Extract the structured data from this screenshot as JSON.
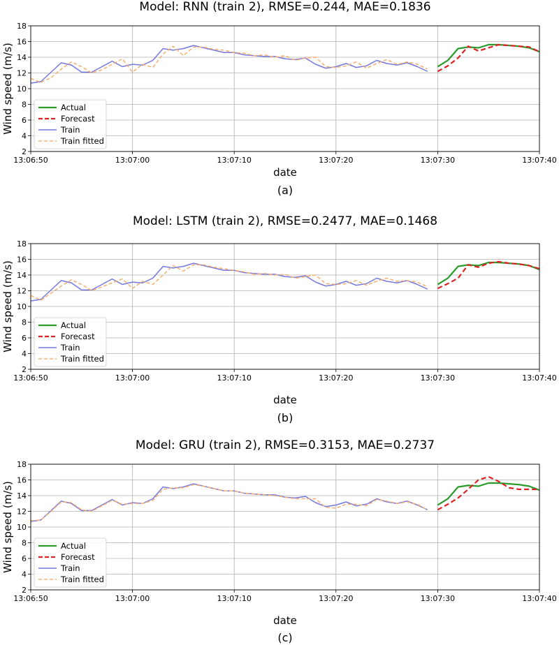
{
  "chart_data": [
    {
      "type": "line",
      "title": "Model: RNN (train 2), RMSE=0.244, MAE=0.1836",
      "xlabel": "date",
      "ylabel": "Wind speed (m/s)",
      "panel_label": "(a)",
      "xlim": [
        "13:06:50",
        "13:07:40"
      ],
      "ylim": [
        2,
        18
      ],
      "yticks": [
        2,
        4,
        6,
        8,
        10,
        12,
        14,
        16,
        18
      ],
      "xticks": [
        "13:06:50",
        "13:07:00",
        "13:07:10",
        "13:07:20",
        "13:07:30",
        "13:07:40"
      ],
      "grid": true,
      "legend": "lower left",
      "x_units": "seconds after 13:06:50",
      "series": [
        {
          "name": "Actual",
          "color": "#2a9a2a",
          "style": "solid",
          "x": [
            40,
            41,
            42,
            43,
            44,
            45,
            46,
            47,
            48,
            49,
            50
          ],
          "y": [
            12.8,
            13.6,
            15.1,
            15.3,
            15.2,
            15.6,
            15.6,
            15.5,
            15.4,
            15.2,
            14.7
          ]
        },
        {
          "name": "Forecast",
          "color": "#dd2222",
          "style": "dashed",
          "x": [
            40,
            41,
            42,
            43,
            44,
            45,
            46,
            47,
            48,
            49,
            50
          ],
          "y": [
            12.2,
            12.9,
            13.9,
            15.4,
            14.8,
            15.2,
            15.6,
            15.5,
            15.4,
            15.3,
            14.7
          ]
        },
        {
          "name": "Train",
          "color": "#7777dd",
          "style": "solid",
          "x": [
            0,
            1,
            2,
            3,
            4,
            5,
            6,
            7,
            8,
            9,
            10,
            11,
            12,
            13,
            14,
            15,
            16,
            17,
            18,
            19,
            20,
            21,
            22,
            23,
            24,
            25,
            26,
            27,
            28,
            29,
            30,
            31,
            32,
            33,
            34,
            35,
            36,
            37,
            38,
            39
          ],
          "y": [
            10.7,
            10.9,
            12.1,
            13.3,
            13.0,
            12.1,
            12.1,
            12.8,
            13.5,
            12.8,
            13.1,
            13.0,
            13.6,
            15.1,
            14.9,
            15.1,
            15.5,
            15.2,
            14.9,
            14.6,
            14.6,
            14.3,
            14.2,
            14.1,
            14.1,
            13.8,
            13.7,
            13.9,
            13.1,
            12.6,
            12.8,
            13.2,
            12.7,
            12.9,
            13.6,
            13.2,
            13.0,
            13.3,
            12.8,
            12.2
          ]
        },
        {
          "name": "Train fitted",
          "color": "#f5b070",
          "style": "dashed",
          "x": [
            0,
            1,
            2,
            3,
            4,
            5,
            6,
            7,
            8,
            9,
            10,
            11,
            12,
            13,
            14,
            15,
            16,
            17,
            18,
            19,
            20,
            21,
            22,
            23,
            24,
            25,
            26,
            27,
            28,
            29,
            30,
            31,
            32,
            33,
            34,
            35,
            36,
            37,
            38,
            39
          ],
          "y": [
            11.3,
            10.8,
            11.4,
            12.5,
            13.4,
            12.8,
            12.0,
            12.4,
            13.1,
            13.8,
            12.1,
            13.1,
            12.7,
            14.4,
            15.4,
            14.2,
            15.3,
            15.3,
            15.0,
            14.9,
            14.6,
            14.5,
            14.2,
            14.3,
            14.0,
            14.2,
            13.6,
            13.9,
            14.0,
            12.8,
            12.7,
            12.9,
            13.4,
            12.6,
            13.2,
            13.7,
            13.1,
            13.4,
            13.1,
            12.5
          ]
        }
      ]
    },
    {
      "type": "line",
      "title": "Model: LSTM (train 2), RMSE=0.2477, MAE=0.1468",
      "xlabel": "date",
      "ylabel": "Wind speed (m/s)",
      "panel_label": "(b)",
      "xlim": [
        "13:06:50",
        "13:07:40"
      ],
      "ylim": [
        2,
        18
      ],
      "yticks": [
        2,
        4,
        6,
        8,
        10,
        12,
        14,
        16,
        18
      ],
      "xticks": [
        "13:06:50",
        "13:07:00",
        "13:07:10",
        "13:07:20",
        "13:07:30",
        "13:07:40"
      ],
      "grid": true,
      "legend": "lower left",
      "x_units": "seconds after 13:06:50",
      "series": [
        {
          "name": "Actual",
          "color": "#2a9a2a",
          "style": "solid",
          "x": [
            40,
            41,
            42,
            43,
            44,
            45,
            46,
            47,
            48,
            49,
            50
          ],
          "y": [
            12.8,
            13.6,
            15.1,
            15.3,
            15.2,
            15.6,
            15.6,
            15.5,
            15.4,
            15.2,
            14.7
          ]
        },
        {
          "name": "Forecast",
          "color": "#dd2222",
          "style": "dashed",
          "x": [
            40,
            41,
            42,
            43,
            44,
            45,
            46,
            47,
            48,
            49,
            50
          ],
          "y": [
            12.3,
            12.9,
            13.6,
            15.3,
            15.0,
            15.5,
            15.7,
            15.5,
            15.4,
            15.2,
            14.8
          ]
        },
        {
          "name": "Train",
          "color": "#7777dd",
          "style": "solid",
          "x": [
            0,
            1,
            2,
            3,
            4,
            5,
            6,
            7,
            8,
            9,
            10,
            11,
            12,
            13,
            14,
            15,
            16,
            17,
            18,
            19,
            20,
            21,
            22,
            23,
            24,
            25,
            26,
            27,
            28,
            29,
            30,
            31,
            32,
            33,
            34,
            35,
            36,
            37,
            38,
            39
          ],
          "y": [
            10.7,
            10.9,
            12.1,
            13.3,
            13.0,
            12.1,
            12.1,
            12.8,
            13.5,
            12.8,
            13.1,
            13.0,
            13.6,
            15.1,
            14.9,
            15.1,
            15.5,
            15.2,
            14.9,
            14.6,
            14.6,
            14.3,
            14.2,
            14.1,
            14.1,
            13.8,
            13.7,
            13.9,
            13.1,
            12.6,
            12.8,
            13.2,
            12.7,
            12.9,
            13.6,
            13.2,
            13.0,
            13.3,
            12.8,
            12.2
          ]
        },
        {
          "name": "Train fitted",
          "color": "#f5b070",
          "style": "dashed",
          "x": [
            0,
            1,
            2,
            3,
            4,
            5,
            6,
            7,
            8,
            9,
            10,
            11,
            12,
            13,
            14,
            15,
            16,
            17,
            18,
            19,
            20,
            21,
            22,
            23,
            24,
            25,
            26,
            27,
            28,
            29,
            30,
            31,
            32,
            33,
            34,
            35,
            36,
            37,
            38,
            39
          ],
          "y": [
            11.4,
            10.8,
            11.7,
            12.6,
            13.4,
            12.8,
            12.0,
            12.5,
            13.0,
            13.5,
            12.3,
            13.2,
            12.8,
            14.0,
            15.2,
            14.5,
            15.3,
            15.3,
            15.0,
            14.8,
            14.6,
            14.4,
            14.1,
            14.2,
            14.0,
            14.1,
            13.6,
            13.8,
            14.0,
            12.9,
            12.8,
            12.9,
            13.3,
            12.7,
            13.2,
            13.6,
            13.2,
            13.3,
            13.1,
            12.5
          ]
        }
      ]
    },
    {
      "type": "line",
      "title": "Model: GRU (train 2), RMSE=0.3153, MAE=0.2737",
      "xlabel": "date",
      "ylabel": "Wind speed (m/s)",
      "panel_label": "(c)",
      "xlim": [
        "13:06:50",
        "13:07:40"
      ],
      "ylim": [
        2,
        18
      ],
      "yticks": [
        2,
        4,
        6,
        8,
        10,
        12,
        14,
        16,
        18
      ],
      "xticks": [
        "13:06:50",
        "13:07:00",
        "13:07:10",
        "13:07:20",
        "13:07:30",
        "13:07:40"
      ],
      "grid": true,
      "legend": "lower left",
      "x_units": "seconds after 13:06:50",
      "series": [
        {
          "name": "Actual",
          "color": "#2a9a2a",
          "style": "solid",
          "x": [
            40,
            41,
            42,
            43,
            44,
            45,
            46,
            47,
            48,
            49,
            50
          ],
          "y": [
            12.8,
            13.6,
            15.1,
            15.3,
            15.2,
            15.6,
            15.6,
            15.5,
            15.4,
            15.2,
            14.7
          ]
        },
        {
          "name": "Forecast",
          "color": "#dd2222",
          "style": "dashed",
          "x": [
            40,
            41,
            42,
            43,
            44,
            45,
            46,
            47,
            48,
            49,
            50
          ],
          "y": [
            12.2,
            12.9,
            13.7,
            14.8,
            16.0,
            16.4,
            15.8,
            15.0,
            14.8,
            14.8,
            14.8
          ]
        },
        {
          "name": "Train",
          "color": "#7777dd",
          "style": "solid",
          "x": [
            0,
            1,
            2,
            3,
            4,
            5,
            6,
            7,
            8,
            9,
            10,
            11,
            12,
            13,
            14,
            15,
            16,
            17,
            18,
            19,
            20,
            21,
            22,
            23,
            24,
            25,
            26,
            27,
            28,
            29,
            30,
            31,
            32,
            33,
            34,
            35,
            36,
            37,
            38,
            39
          ],
          "y": [
            10.7,
            10.9,
            12.1,
            13.3,
            13.0,
            12.1,
            12.1,
            12.8,
            13.5,
            12.8,
            13.1,
            13.0,
            13.6,
            15.1,
            14.9,
            15.1,
            15.5,
            15.2,
            14.9,
            14.6,
            14.6,
            14.3,
            14.2,
            14.1,
            14.1,
            13.8,
            13.7,
            13.9,
            13.1,
            12.6,
            12.8,
            13.2,
            12.7,
            12.9,
            13.6,
            13.2,
            13.0,
            13.3,
            12.8,
            12.2
          ]
        },
        {
          "name": "Train fitted",
          "color": "#f5b070",
          "style": "dashed",
          "x": [
            0,
            1,
            2,
            3,
            4,
            5,
            6,
            7,
            8,
            9,
            10,
            11,
            12,
            13,
            14,
            15,
            16,
            17,
            18,
            19,
            20,
            21,
            22,
            23,
            24,
            25,
            26,
            27,
            28,
            29,
            30,
            31,
            32,
            33,
            34,
            35,
            36,
            37,
            38,
            39
          ],
          "y": [
            10.8,
            10.9,
            12.0,
            13.2,
            13.1,
            12.2,
            12.0,
            12.7,
            13.4,
            12.9,
            13.0,
            13.0,
            13.4,
            14.8,
            15.0,
            15.0,
            15.4,
            15.2,
            14.9,
            14.6,
            14.6,
            14.3,
            14.2,
            14.1,
            14.0,
            13.8,
            13.6,
            13.6,
            13.6,
            12.5,
            12.4,
            12.9,
            12.9,
            12.7,
            13.5,
            13.3,
            13.0,
            13.2,
            12.9,
            12.2
          ]
        }
      ]
    }
  ]
}
